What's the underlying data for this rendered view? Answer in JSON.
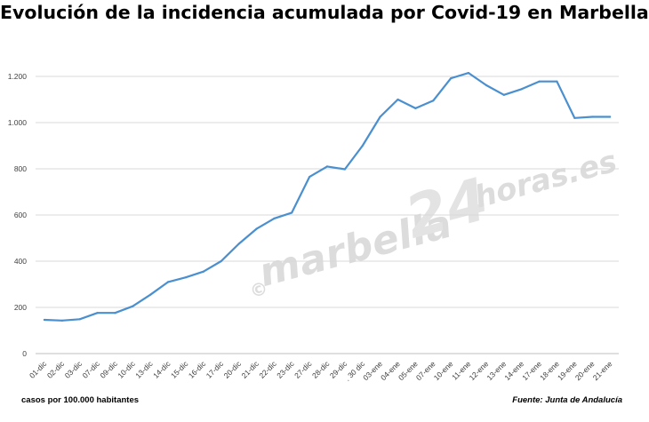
{
  "title": "Evolución de la incidencia acumulada por Covid-19 en Marbella",
  "footer": {
    "left": "casos por 100.000 habitantes",
    "right": "Fuente: Junta de Andalucía"
  },
  "watermark": {
    "copyright": "©",
    "main": "marbella",
    "number": "24",
    "tail": "horas.es"
  },
  "colors": {
    "line": "#4a8fcf",
    "grid": "#d9d9d9",
    "axis_text": "#404040"
  },
  "chart_data": {
    "type": "line",
    "title": "Evolución de la incidencia acumulada por Covid-19 en Marbella",
    "xlabel": "",
    "ylabel": "",
    "ylim": [
      0,
      1300
    ],
    "yticks": [
      0,
      200,
      400,
      600,
      800,
      "1.000",
      "1.200"
    ],
    "ytick_values": [
      0,
      200,
      400,
      600,
      800,
      1000,
      1200
    ],
    "grid": true,
    "legend": "none",
    "categories": [
      "01-dic",
      "02-dic",
      "03-dic",
      "07-dic",
      "09-dic",
      "10-dic",
      "13-dic",
      "14-dic",
      "15-dic",
      "16-dic",
      "17-dic",
      "20-dic",
      "21-dic",
      "22-dic",
      "23-dic",
      "27-dic",
      "28-dic",
      "29-dic",
      ". 30 dic",
      "03-ene",
      "04-ene",
      "05-ene",
      "07-ene",
      "10-ene",
      "11-ene",
      "12-ene",
      "13-ene",
      "14-ene",
      "17-ene",
      "18-ene",
      "19-ene",
      "20-ene",
      "21-ene"
    ],
    "values": [
      146,
      143,
      149,
      176,
      176,
      205,
      255,
      310,
      330,
      355,
      400,
      475,
      540,
      585,
      610,
      765,
      810,
      798,
      900,
      1025,
      1100,
      1062,
      1095,
      1192,
      1215,
      1162,
      1120,
      1145,
      1178,
      1178,
      1020,
      1025,
      1025
    ]
  }
}
